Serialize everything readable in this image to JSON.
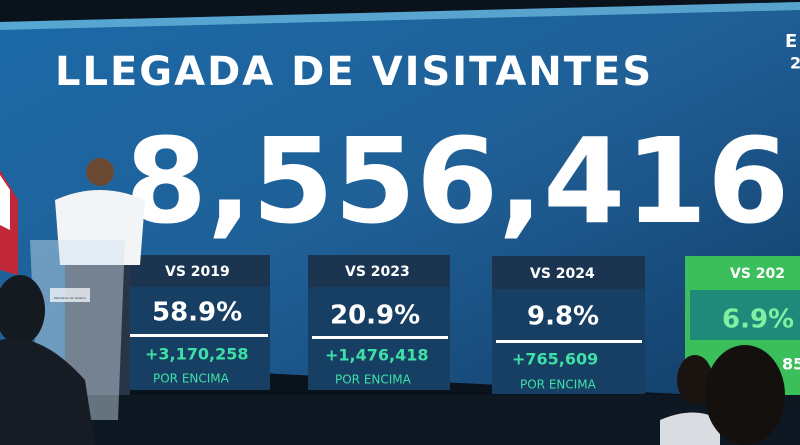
{
  "screen": {
    "title": "LLEGADA DE VISITANTES",
    "total": "8,556,416",
    "corner": [
      "E",
      "2"
    ],
    "cards": [
      {
        "label": "VS 2019",
        "percent": "58.9%",
        "difference": "+3,170,258",
        "note": "POR ENCIMA"
      },
      {
        "label": "VS 2023",
        "percent": "20.9%",
        "difference": "+1,476,418",
        "note": "POR ENCIMA"
      },
      {
        "label": "VS 2024",
        "percent": "9.8%",
        "difference": "+765,609",
        "note": "POR ENCIMA"
      },
      {
        "label": "VS 202",
        "percent": "6.9%",
        "difference": "85"
      }
    ]
  },
  "podium": {
    "logo_text": "Ministerio de Turismo"
  }
}
